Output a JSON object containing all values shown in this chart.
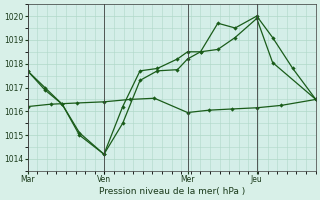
{
  "background_color": "#d8f0e8",
  "plot_bg_color": "#d4eee8",
  "grid_color": "#b0d8c8",
  "line_color": "#1a5c1a",
  "title": "Pression niveau de la mer( hPa )",
  "ylim": [
    1013.5,
    1020.5
  ],
  "yticks": [
    1014,
    1015,
    1016,
    1017,
    1018,
    1019,
    1020
  ],
  "x_labels": [
    "Mar",
    "Ven",
    "Mer",
    "Jeu"
  ],
  "x_vline_pos": [
    0.0,
    0.265,
    0.555,
    0.795
  ],
  "series_flat": {
    "x": [
      0.0,
      0.08,
      0.17,
      0.265,
      0.355,
      0.44,
      0.555,
      0.63,
      0.71,
      0.795,
      0.88,
      1.0
    ],
    "y": [
      1016.2,
      1016.3,
      1016.35,
      1016.4,
      1016.5,
      1016.55,
      1015.95,
      1016.05,
      1016.1,
      1016.15,
      1016.25,
      1016.5
    ]
  },
  "series_mid": {
    "x": [
      0.0,
      0.06,
      0.12,
      0.18,
      0.265,
      0.33,
      0.39,
      0.45,
      0.52,
      0.555,
      0.6,
      0.66,
      0.72,
      0.795,
      0.85,
      1.0
    ],
    "y": [
      1017.7,
      1017.0,
      1016.3,
      1015.1,
      1014.2,
      1015.5,
      1017.3,
      1017.7,
      1017.75,
      1018.2,
      1018.5,
      1018.6,
      1019.1,
      1019.9,
      1018.05,
      1016.5
    ]
  },
  "series_top": {
    "x": [
      0.0,
      0.06,
      0.12,
      0.18,
      0.265,
      0.33,
      0.39,
      0.45,
      0.52,
      0.555,
      0.6,
      0.66,
      0.72,
      0.795,
      0.85,
      0.92,
      1.0
    ],
    "y": [
      1017.7,
      1016.9,
      1016.3,
      1015.0,
      1014.2,
      1016.2,
      1017.7,
      1017.8,
      1018.2,
      1018.5,
      1018.5,
      1019.7,
      1019.5,
      1020.0,
      1019.1,
      1017.8,
      1016.5
    ]
  }
}
